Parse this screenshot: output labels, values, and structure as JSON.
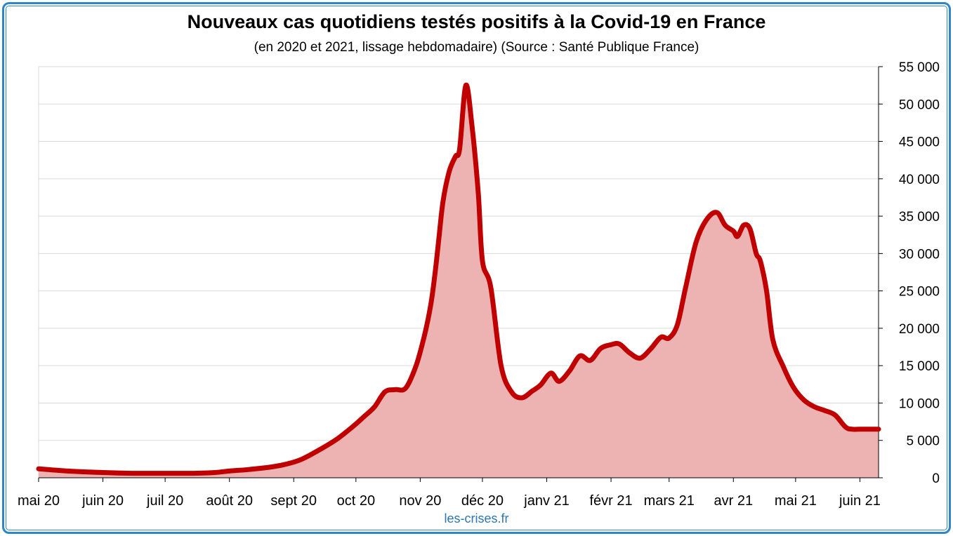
{
  "chart_data": {
    "type": "area",
    "title": "Nouveaux cas quotidiens testés positifs à la Covid-19 en France",
    "subtitle": "(en 2020 et 2021, lissage hebdomadaire) (Source : Santé Publique France)",
    "source_label": "les-crises.fr",
    "xlabel": "",
    "ylabel": "",
    "ylim": [
      0,
      55000
    ],
    "y_ticks": [
      0,
      5000,
      10000,
      15000,
      20000,
      25000,
      30000,
      35000,
      40000,
      45000,
      50000,
      55000
    ],
    "y_tick_labels": [
      "0",
      "5 000",
      "10 000",
      "15 000",
      "20 000",
      "25 000",
      "30 000",
      "35 000",
      "40 000",
      "45 000",
      "50 000",
      "55 000"
    ],
    "y_axis_side": "right",
    "grid": true,
    "x_range": [
      "2020-05-01",
      "2021-06-10"
    ],
    "x_tick_dates": [
      "2020-05-01",
      "2020-06-01",
      "2020-07-01",
      "2020-08-01",
      "2020-09-01",
      "2020-10-01",
      "2020-11-01",
      "2020-12-01",
      "2021-01-01",
      "2021-02-01",
      "2021-03-01",
      "2021-04-01",
      "2021-05-01",
      "2021-06-01"
    ],
    "x_tick_labels": [
      "mai 20",
      "juin 20",
      "juil 20",
      "août 20",
      "sept 20",
      "oct 20",
      "nov 20",
      "déc 20",
      "janv 21",
      "févr 21",
      "mars 21",
      "avr 21",
      "mai 21",
      "juin 21"
    ],
    "colors": {
      "line": "#c00000",
      "fill": "#edb3b3",
      "grid": "#d9d9d9",
      "frame": "#2e86c8"
    },
    "series": [
      {
        "x": [
          "2020-05-01",
          "2020-05-15",
          "2020-06-01",
          "2020-06-15",
          "2020-07-01",
          "2020-07-15",
          "2020-07-25",
          "2020-08-01",
          "2020-08-10",
          "2020-08-20",
          "2020-08-28",
          "2020-09-05",
          "2020-09-15",
          "2020-09-22",
          "2020-09-28",
          "2020-10-01",
          "2020-10-05",
          "2020-10-10",
          "2020-10-15",
          "2020-10-20",
          "2020-10-25",
          "2020-10-30",
          "2020-11-03",
          "2020-11-06",
          "2020-11-08",
          "2020-11-10",
          "2020-11-12",
          "2020-11-15",
          "2020-11-18",
          "2020-11-20",
          "2020-11-23",
          "2020-11-26",
          "2020-11-29",
          "2020-12-01",
          "2020-12-05",
          "2020-12-10",
          "2020-12-15",
          "2020-12-20",
          "2020-12-25",
          "2020-12-29",
          "2021-01-03",
          "2021-01-07",
          "2021-01-12",
          "2021-01-17",
          "2021-01-22",
          "2021-01-27",
          "2021-02-01",
          "2021-02-05",
          "2021-02-10",
          "2021-02-15",
          "2021-02-20",
          "2021-02-25",
          "2021-03-01",
          "2021-03-05",
          "2021-03-09",
          "2021-03-14",
          "2021-03-19",
          "2021-03-24",
          "2021-03-28",
          "2021-04-01",
          "2021-04-03",
          "2021-04-06",
          "2021-04-09",
          "2021-04-12",
          "2021-04-14",
          "2021-04-17",
          "2021-04-20",
          "2021-04-25",
          "2021-04-30",
          "2021-05-05",
          "2021-05-10",
          "2021-05-15",
          "2021-05-20",
          "2021-05-25",
          "2021-05-28",
          "2021-06-01",
          "2021-06-05",
          "2021-06-08",
          "2021-06-10"
        ],
        "values": [
          1200,
          900,
          700,
          600,
          600,
          600,
          700,
          900,
          1100,
          1400,
          1800,
          2500,
          4000,
          5200,
          6500,
          7200,
          8200,
          9500,
          11500,
          11800,
          12000,
          15000,
          19000,
          23000,
          27000,
          32000,
          37000,
          41000,
          43000,
          44000,
          52500,
          47000,
          38000,
          29000,
          25500,
          15000,
          11500,
          10700,
          11600,
          12400,
          14000,
          12900,
          14300,
          16300,
          15700,
          17300,
          17800,
          17900,
          16700,
          16000,
          17200,
          18800,
          18700,
          20500,
          25500,
          31500,
          34500,
          35500,
          33800,
          33000,
          32300,
          33800,
          33300,
          30000,
          29000,
          25000,
          18500,
          14900,
          12100,
          10400,
          9500,
          9000,
          8400,
          6800,
          6500,
          6500,
          6500,
          6500,
          6500
        ]
      }
    ]
  }
}
